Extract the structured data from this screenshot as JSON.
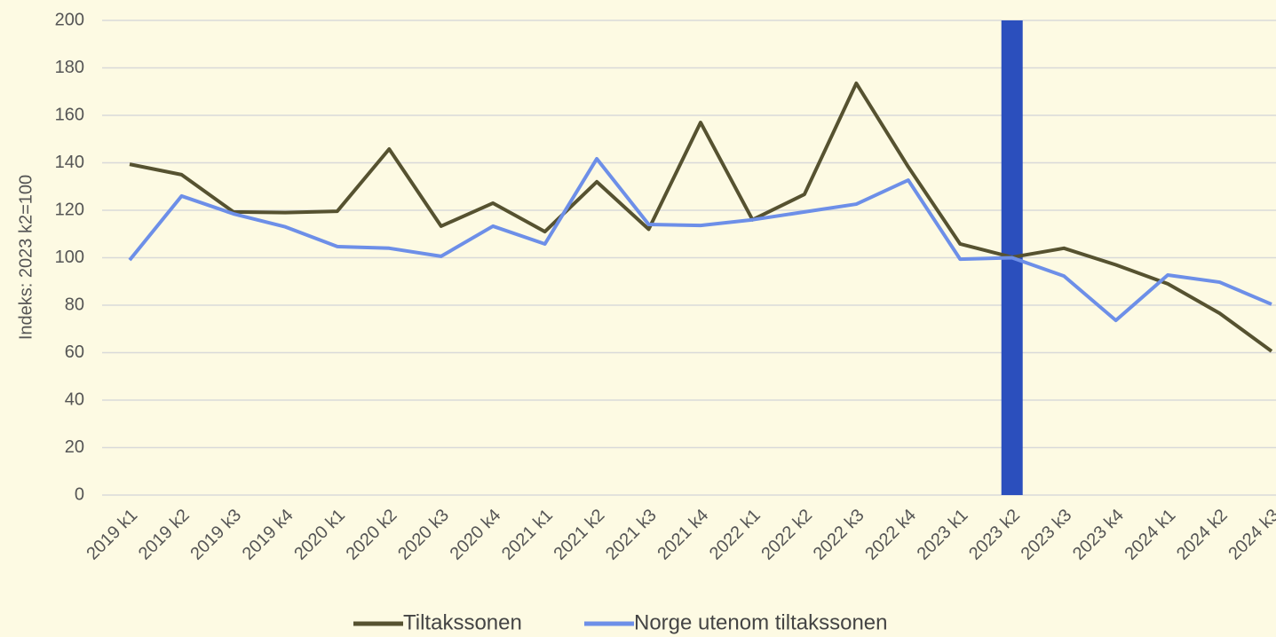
{
  "chart_data": {
    "type": "line",
    "y_label": "Indeks: 2023 k2=100",
    "categories": [
      "2019 k1",
      "2019 k2",
      "2019 k3",
      "2019 k4",
      "2020 k1",
      "2020 k2",
      "2020 k3",
      "2020 k4",
      "2021 k1",
      "2021 k2",
      "2021 k3",
      "2021 k4",
      "2022 k1",
      "2022 k2",
      "2022 k3",
      "2022 k4",
      "2023 k1",
      "2023 k2",
      "2023 k3",
      "2023 k4",
      "2024 k1",
      "2024 k2",
      "2024 k3"
    ],
    "series": [
      {
        "type": "bar",
        "color": "#2b4fbd",
        "values": [
          null,
          null,
          null,
          null,
          null,
          null,
          null,
          null,
          null,
          null,
          null,
          null,
          null,
          null,
          null,
          null,
          null,
          200,
          null,
          null,
          null,
          null,
          null
        ]
      },
      {
        "name": "Tiltakssonen",
        "color": "#565230",
        "values": [
          139.4,
          135,
          119.3,
          119,
          119.6,
          145.8,
          113.3,
          123,
          111,
          132,
          112,
          157,
          116,
          126.7,
          173.5,
          138.3,
          105.8,
          100.2,
          104,
          97,
          89,
          76.6,
          60.6
        ]
      },
      {
        "name": "Norge utenom tiltakssonen",
        "color": "#6d8fe8",
        "values": [
          99,
          126,
          118.5,
          113,
          104.7,
          104,
          100.6,
          113.3,
          105.8,
          141.7,
          114,
          113.6,
          116,
          119.3,
          122.6,
          132.7,
          99.4,
          100,
          92.3,
          73.6,
          92.7,
          89.7,
          80.4
        ]
      }
    ],
    "ylim": [
      0,
      200
    ],
    "yticks": [
      0,
      20,
      40,
      60,
      80,
      100,
      120,
      140,
      160,
      180,
      200
    ],
    "grid": true,
    "legend": "bottom"
  }
}
